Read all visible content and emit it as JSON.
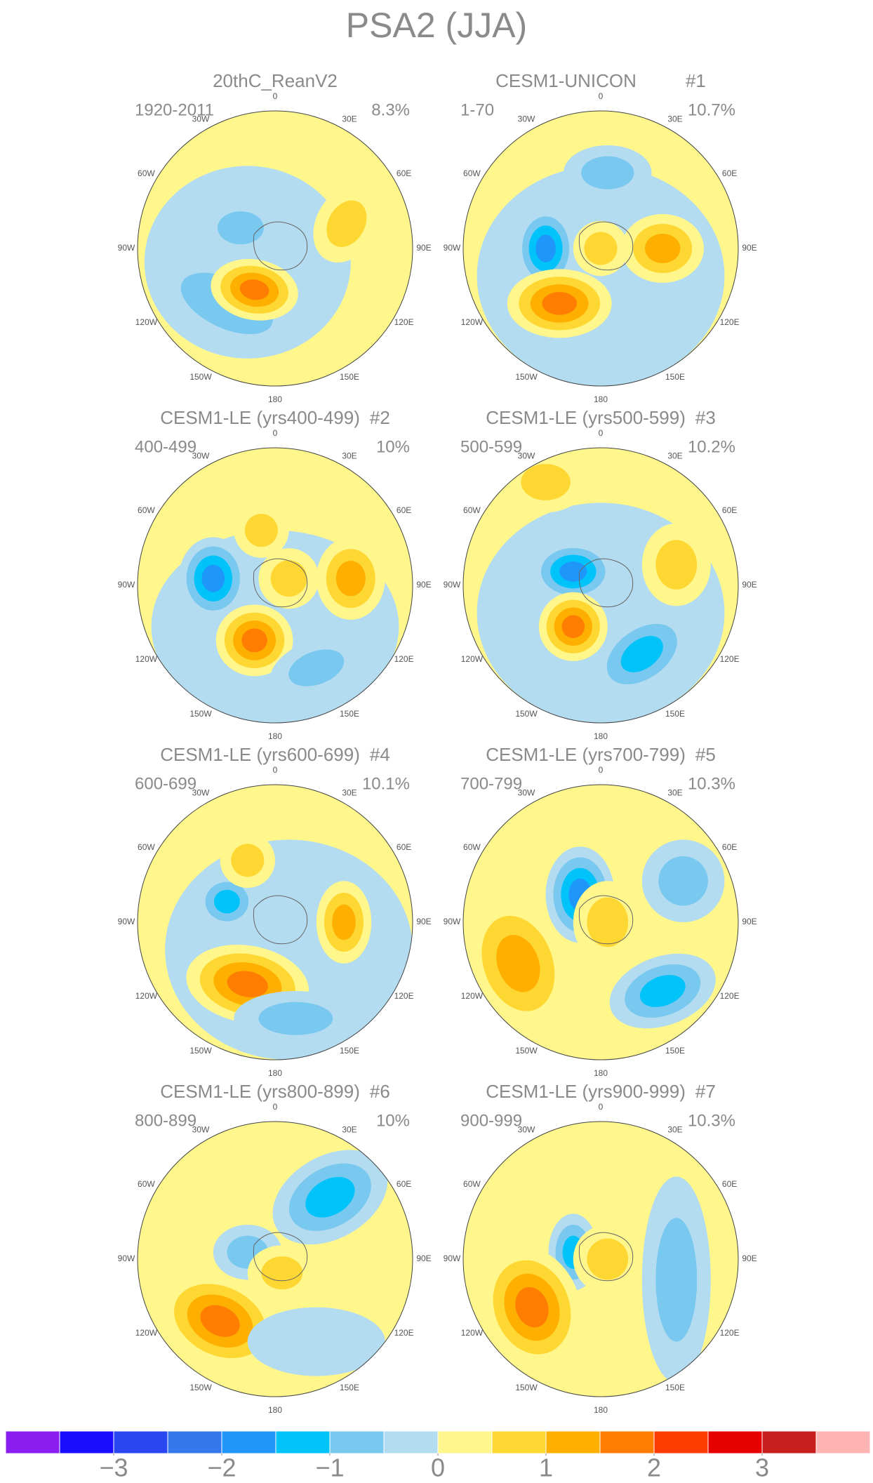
{
  "title": "PSA2 (JJA)",
  "map_labels": [
    "0",
    "30E",
    "60E",
    "90E",
    "120E",
    "150E",
    "180",
    "150W",
    "120W",
    "90W",
    "60W",
    "30W"
  ],
  "panels": [
    {
      "name": "20thC_ReanV2",
      "period": "1920-2011",
      "percent": "8.3%"
    },
    {
      "name": "CESM1-UNICON",
      "number": "#1",
      "period": "1-70",
      "percent": "10.7%"
    },
    {
      "name": "CESM1-LE (yrs400-499)",
      "number": "#2",
      "period": "400-499",
      "percent": "10%"
    },
    {
      "name": "CESM1-LE (yrs500-599)",
      "number": "#3",
      "period": "500-599",
      "percent": "10.2%"
    },
    {
      "name": "CESM1-LE (yrs600-699)",
      "number": "#4",
      "period": "600-699",
      "percent": "10.1%"
    },
    {
      "name": "CESM1-LE (yrs700-799)",
      "number": "#5",
      "period": "700-799",
      "percent": "10.3%"
    },
    {
      "name": "CESM1-LE (yrs800-899)",
      "number": "#6",
      "period": "800-899",
      "percent": "10%"
    },
    {
      "name": "CESM1-LE (yrs900-999)",
      "number": "#7",
      "period": "900-999",
      "percent": "10.3%"
    }
  ],
  "colorbar": {
    "levels": [
      -4,
      -3.5,
      -3,
      -2.5,
      -2,
      -1.5,
      -1,
      -0.5,
      0,
      0.5,
      1,
      1.5,
      2,
      2.5,
      3,
      3.5,
      4
    ],
    "colors": [
      "#8a1ef0",
      "#1a0cff",
      "#2a46f0",
      "#3478ee",
      "#1e96fa",
      "#00c3fa",
      "#78c8f0",
      "#b4dcf0",
      "#fff68c",
      "#ffd732",
      "#ffaf00",
      "#ff7d00",
      "#ff3c00",
      "#e60000",
      "#c81e1e",
      "#ffb4b4"
    ],
    "ticks": [
      {
        "value": -3,
        "label": "−3"
      },
      {
        "value": -2,
        "label": "−2"
      },
      {
        "value": -1,
        "label": "−1"
      },
      0,
      1,
      2,
      3
    ]
  }
}
